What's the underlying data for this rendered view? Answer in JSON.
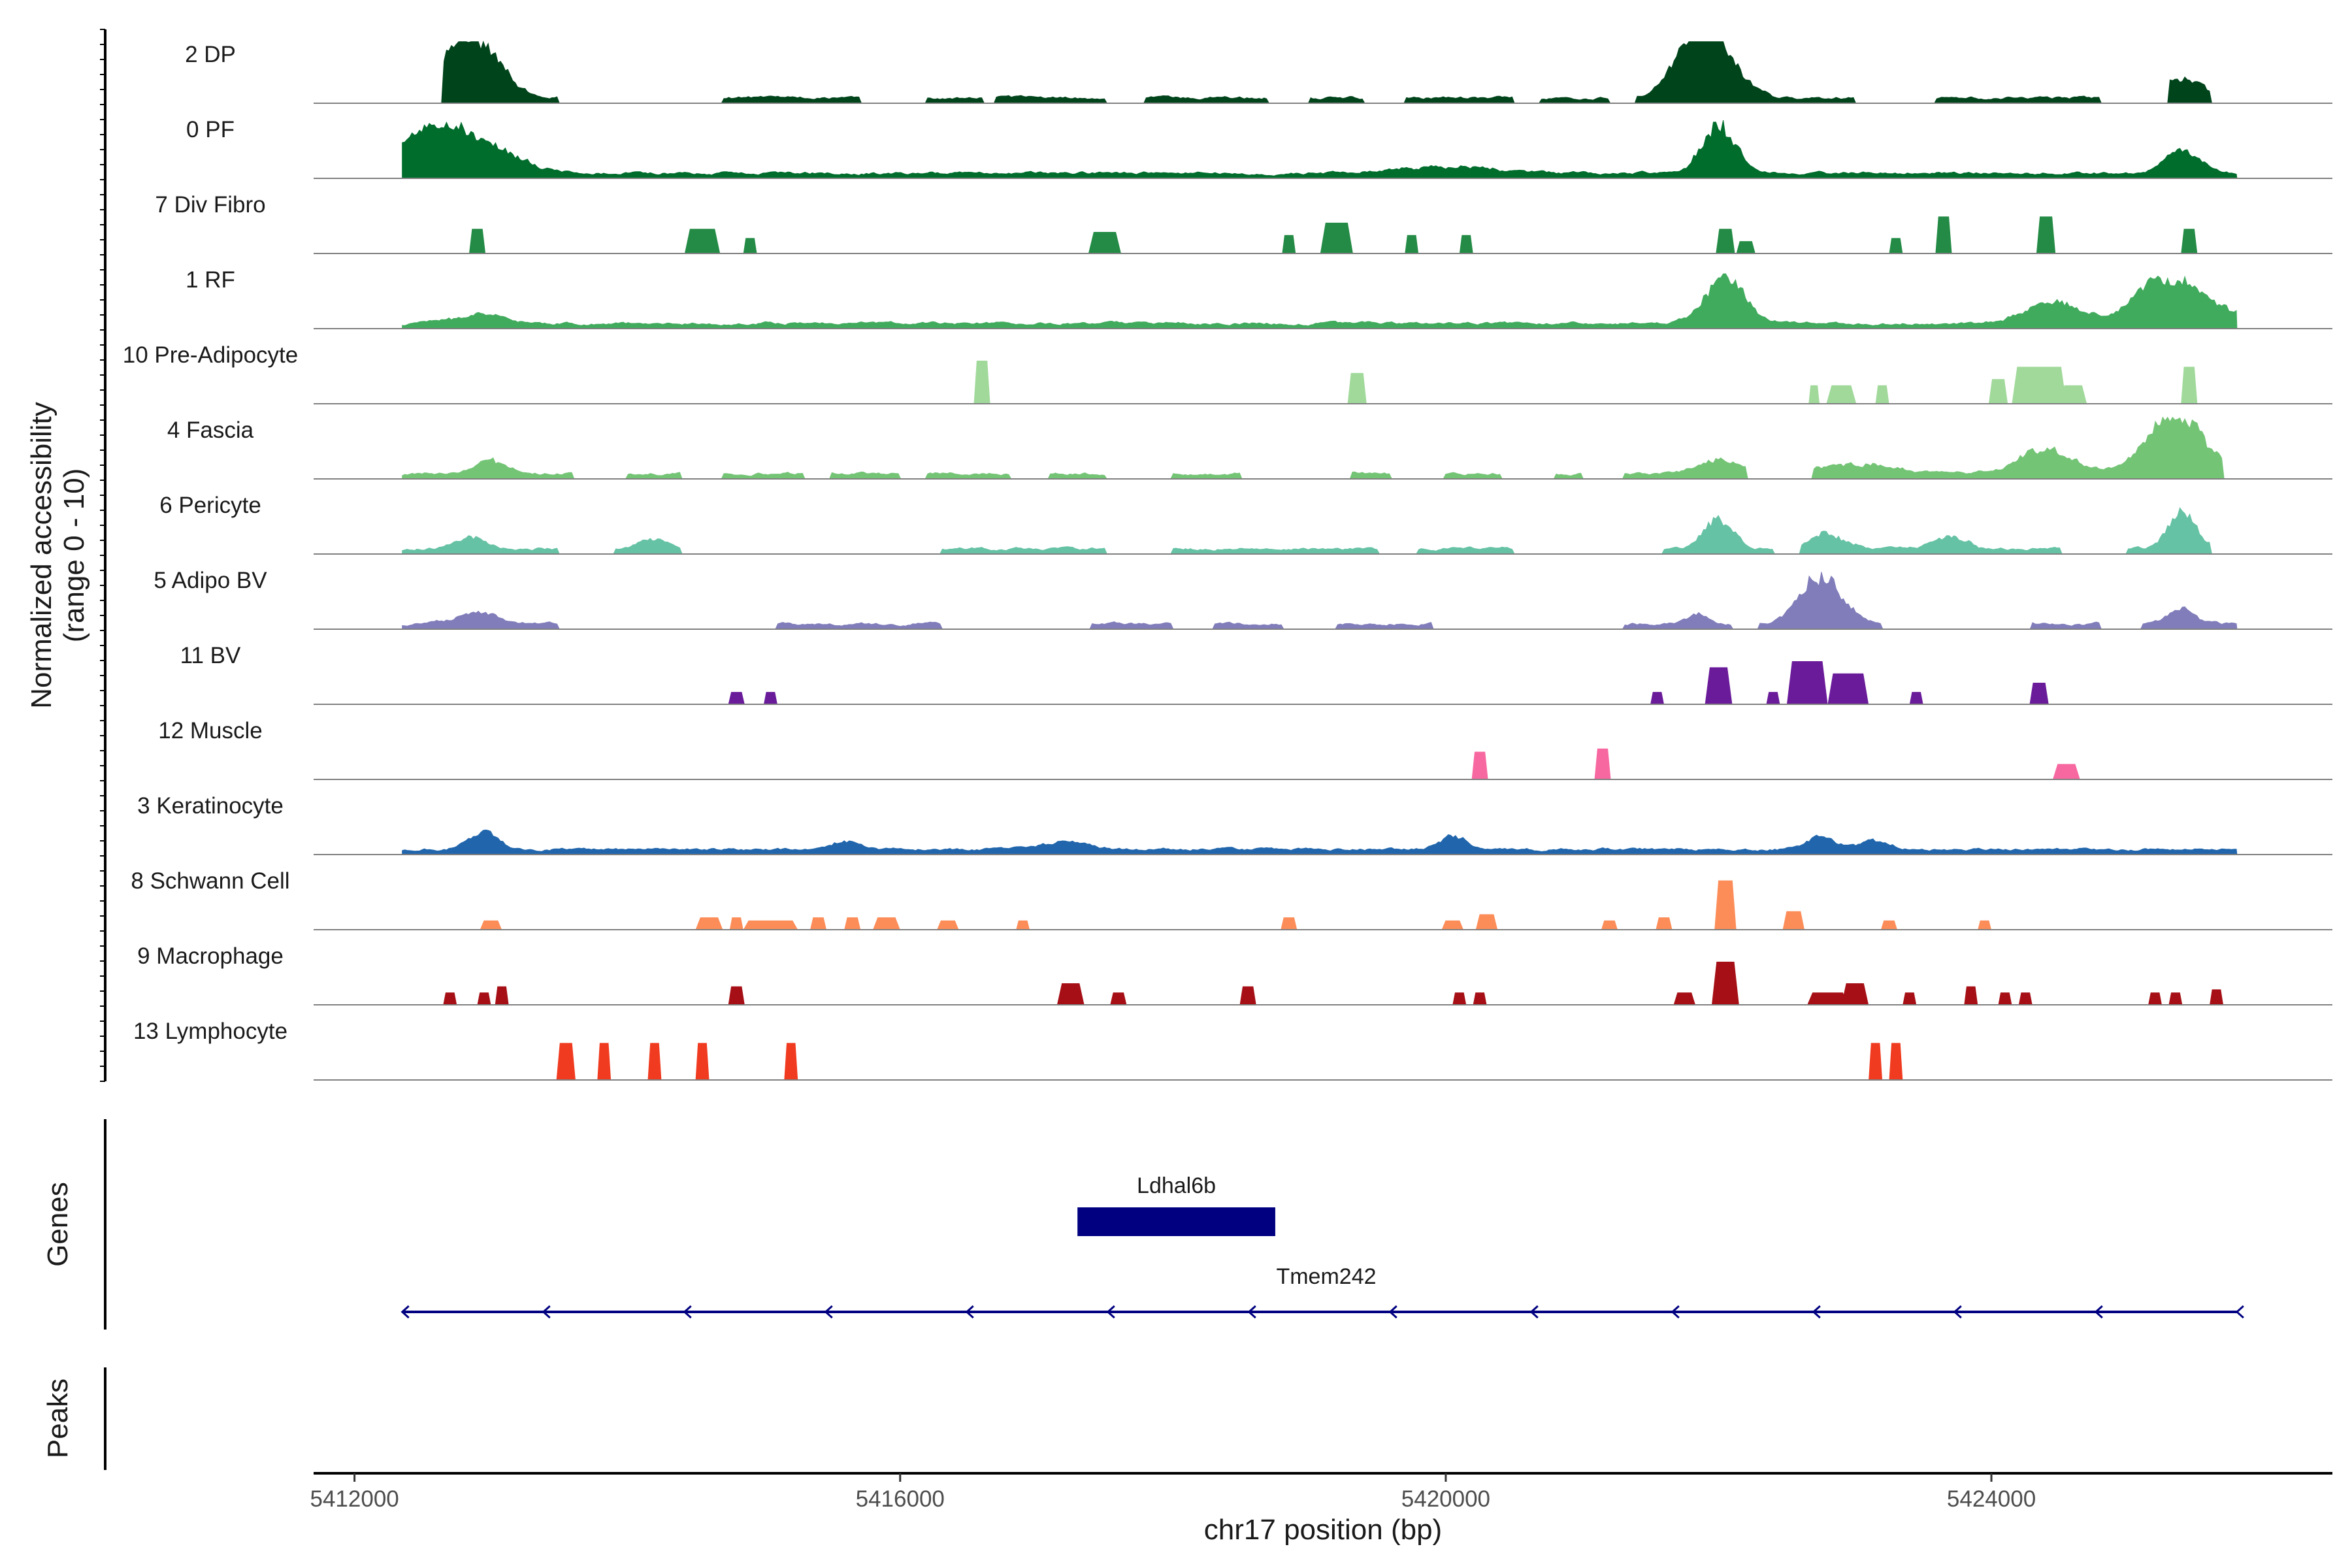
{
  "chart_data": {
    "type": "area",
    "title": "",
    "chromosome": "chr17",
    "xlabel": "chr17 position (bp)",
    "ylabel_line1": "Normalized accessibility",
    "ylabel_line2": "(range 0 - 10)",
    "xlim": [
      5411700,
      5426500
    ],
    "data_range": [
      5412350,
      5425800
    ],
    "x_ticks": [
      5412000,
      5416000,
      5420000,
      5424000
    ],
    "x_tick_labels": [
      "5412000",
      "5416000",
      "5420000",
      "5424000"
    ],
    "ylim": [
      0,
      10
    ],
    "panel_labels": {
      "genes": "Genes",
      "peaks": "Peaks"
    },
    "series": [
      {
        "name": "2 DP",
        "color": "#00441b",
        "style": "smooth",
        "peaks": [
          [
            5412900,
            180,
            9
          ],
          [
            5412600,
            180,
            3.5
          ],
          [
            5421950,
            180,
            9
          ],
          [
            5421800,
            150,
            5
          ],
          [
            5425400,
            150,
            3
          ]
        ],
        "islands": [
          [
            5412650,
            5413500
          ],
          [
            5414700,
            5415700
          ],
          [
            5416200,
            5416600
          ],
          [
            5416700,
            5417500
          ],
          [
            5417800,
            5418700
          ],
          [
            5419000,
            5419400
          ],
          [
            5419700,
            5420500
          ],
          [
            5420700,
            5421200
          ],
          [
            5421400,
            5422100
          ],
          [
            5422100,
            5423000
          ],
          [
            5423600,
            5424800
          ],
          [
            5425300,
            5425600
          ]
        ]
      },
      {
        "name": "0 PF",
        "color": "#006d2c",
        "style": "smooth",
        "peaks": [
          [
            5412500,
            200,
            6
          ],
          [
            5412900,
            250,
            5.5
          ],
          [
            5422000,
            120,
            8
          ],
          [
            5425400,
            120,
            3.5
          ],
          [
            5420000,
            300,
            1.2
          ]
        ]
      },
      {
        "name": "7 Div Fibro",
        "color": "#238b45",
        "style": "block",
        "blocks": [
          [
            5412900,
            60,
            4
          ],
          [
            5414550,
            130,
            4
          ],
          [
            5414900,
            50,
            2.5
          ],
          [
            5417500,
            120,
            3.5
          ],
          [
            5418850,
            50,
            3
          ],
          [
            5419200,
            120,
            5
          ],
          [
            5419750,
            50,
            3
          ],
          [
            5420150,
            50,
            3
          ],
          [
            5422050,
            70,
            4
          ],
          [
            5422200,
            70,
            2
          ],
          [
            5423300,
            50,
            2.5
          ],
          [
            5423650,
            60,
            6
          ],
          [
            5424400,
            70,
            6
          ],
          [
            5425450,
            60,
            4
          ]
        ]
      },
      {
        "name": "1 RF",
        "color": "#41ab5d",
        "style": "smooth",
        "peaks": [
          [
            5422050,
            150,
            7
          ],
          [
            5424450,
            200,
            3.5
          ],
          [
            5425400,
            250,
            6
          ],
          [
            5412900,
            200,
            1.5
          ],
          [
            5425150,
            150,
            3
          ]
        ]
      },
      {
        "name": "10 Pre-Adipocyte",
        "color": "#a1d99b",
        "style": "block",
        "blocks": [
          [
            5416600,
            60,
            7
          ],
          [
            5419350,
            70,
            5
          ],
          [
            5422700,
            40,
            3
          ],
          [
            5422900,
            110,
            3
          ],
          [
            5423200,
            50,
            3
          ],
          [
            5424050,
            70,
            4
          ],
          [
            5424350,
            200,
            6
          ],
          [
            5424600,
            100,
            3
          ],
          [
            5425450,
            60,
            6
          ]
        ]
      },
      {
        "name": "4 Fascia",
        "color": "#74c476",
        "style": "smooth",
        "peaks": [
          [
            5425350,
            200,
            10
          ],
          [
            5424400,
            200,
            4
          ],
          [
            5422000,
            150,
            2
          ],
          [
            5413000,
            100,
            2.5
          ],
          [
            5423000,
            300,
            1.5
          ]
        ],
        "islands": [
          [
            5412350,
            5413600
          ],
          [
            5414000,
            5414400
          ],
          [
            5414700,
            5415300
          ],
          [
            5415500,
            5416000
          ],
          [
            5416200,
            5416800
          ],
          [
            5417100,
            5417500
          ],
          [
            5418000,
            5418500
          ],
          [
            5419300,
            5419600
          ],
          [
            5420000,
            5420400
          ],
          [
            5420800,
            5421000
          ],
          [
            5421300,
            5422200
          ],
          [
            5422700,
            5425700
          ]
        ]
      },
      {
        "name": "6 Pericyte",
        "color": "#66c2a4",
        "style": "smooth",
        "peaks": [
          [
            5422000,
            100,
            5
          ],
          [
            5425400,
            100,
            6
          ],
          [
            5412850,
            100,
            2
          ],
          [
            5414200,
            120,
            1.5
          ],
          [
            5422800,
            120,
            2.5
          ],
          [
            5423700,
            120,
            2
          ]
        ],
        "islands": [
          [
            5412350,
            5413500
          ],
          [
            5413900,
            5414400
          ],
          [
            5416300,
            5417500
          ],
          [
            5418000,
            5419500
          ],
          [
            5419800,
            5420500
          ],
          [
            5421600,
            5422400
          ],
          [
            5422600,
            5424500
          ],
          [
            5425000,
            5425600
          ]
        ]
      },
      {
        "name": "5 Adipo BV",
        "color": "#807dba",
        "style": "smooth",
        "peaks": [
          [
            5422750,
            150,
            8
          ],
          [
            5425400,
            100,
            2.5
          ],
          [
            5412900,
            150,
            2
          ],
          [
            5421850,
            80,
            1.5
          ]
        ],
        "islands": [
          [
            5412350,
            5413500
          ],
          [
            5415100,
            5416300
          ],
          [
            5417400,
            5418000
          ],
          [
            5418300,
            5418800
          ],
          [
            5419200,
            5419900
          ],
          [
            5421300,
            5422100
          ],
          [
            5422300,
            5423200
          ],
          [
            5424300,
            5424800
          ],
          [
            5425100,
            5425800
          ]
        ]
      },
      {
        "name": "11 BV",
        "color": "#6a1b9a",
        "style": "block",
        "blocks": [
          [
            5414800,
            60,
            2
          ],
          [
            5415050,
            50,
            2
          ],
          [
            5421550,
            50,
            2
          ],
          [
            5422000,
            100,
            6
          ],
          [
            5422400,
            50,
            2
          ],
          [
            5422650,
            150,
            7
          ],
          [
            5422950,
            150,
            5
          ],
          [
            5423450,
            50,
            2
          ],
          [
            5424350,
            70,
            3.5
          ]
        ]
      },
      {
        "name": "12 Muscle",
        "color": "#f768a1",
        "style": "block",
        "blocks": [
          [
            5420250,
            60,
            4.5
          ],
          [
            5421150,
            60,
            5
          ],
          [
            5424550,
            100,
            2.5
          ]
        ]
      },
      {
        "name": "3 Keratinocyte",
        "color": "#2166ac",
        "style": "smooth",
        "peaks": [
          [
            5412950,
            100,
            3
          ],
          [
            5420050,
            100,
            2
          ],
          [
            5422750,
            100,
            2
          ],
          [
            5423150,
            100,
            1.5
          ],
          [
            5415600,
            100,
            1.5
          ],
          [
            5417200,
            150,
            1.2
          ]
        ]
      },
      {
        "name": "8 Schwann Cell",
        "color": "#fc8d59",
        "style": "block",
        "blocks": [
          [
            5413000,
            80,
            1.5
          ],
          [
            5414600,
            100,
            2
          ],
          [
            5414800,
            50,
            2
          ],
          [
            5415050,
            200,
            1.5
          ],
          [
            5415400,
            60,
            2
          ],
          [
            5415650,
            60,
            2
          ],
          [
            5415900,
            100,
            2
          ],
          [
            5416350,
            80,
            1.5
          ],
          [
            5416900,
            50,
            1.5
          ],
          [
            5418850,
            60,
            2
          ],
          [
            5420050,
            80,
            1.5
          ],
          [
            5420300,
            80,
            2.5
          ],
          [
            5421200,
            60,
            1.5
          ],
          [
            5421600,
            60,
            2
          ],
          [
            5422050,
            80,
            8
          ],
          [
            5422550,
            80,
            3
          ],
          [
            5423250,
            60,
            1.5
          ],
          [
            5423950,
            50,
            1.5
          ]
        ]
      },
      {
        "name": "9 Macrophage",
        "color": "#a50f15",
        "style": "block",
        "blocks": [
          [
            5412700,
            50,
            2
          ],
          [
            5412950,
            50,
            2
          ],
          [
            5413080,
            50,
            3
          ],
          [
            5414800,
            60,
            3
          ],
          [
            5417250,
            100,
            3.5
          ],
          [
            5417600,
            60,
            2
          ],
          [
            5418550,
            60,
            3
          ],
          [
            5420100,
            50,
            2
          ],
          [
            5420250,
            50,
            2
          ],
          [
            5421750,
            80,
            2
          ],
          [
            5422050,
            100,
            7
          ],
          [
            5422800,
            150,
            2
          ],
          [
            5423000,
            100,
            3.5
          ],
          [
            5423400,
            50,
            2
          ],
          [
            5423850,
            50,
            3
          ],
          [
            5424100,
            50,
            2
          ],
          [
            5424250,
            50,
            2
          ],
          [
            5425200,
            50,
            2
          ],
          [
            5425350,
            50,
            2
          ],
          [
            5425650,
            50,
            2.5
          ]
        ]
      },
      {
        "name": "13 Lymphocyte",
        "color": "#f03b20",
        "style": "block",
        "blocks": [
          [
            5413550,
            70,
            6
          ],
          [
            5413830,
            50,
            6
          ],
          [
            5414200,
            50,
            6
          ],
          [
            5414550,
            50,
            6
          ],
          [
            5415200,
            50,
            6
          ],
          [
            5423150,
            50,
            6
          ],
          [
            5423300,
            50,
            6
          ]
        ]
      }
    ],
    "genes": [
      {
        "name": "Ldhal6b",
        "start": 5417300,
        "end": 5418750,
        "type": "exon",
        "color": "#000080"
      },
      {
        "name": "Tmem242",
        "start": 5412350,
        "end": 5425800,
        "type": "intron",
        "strand": "-",
        "color": "#000080"
      }
    ],
    "peaks_track": []
  }
}
